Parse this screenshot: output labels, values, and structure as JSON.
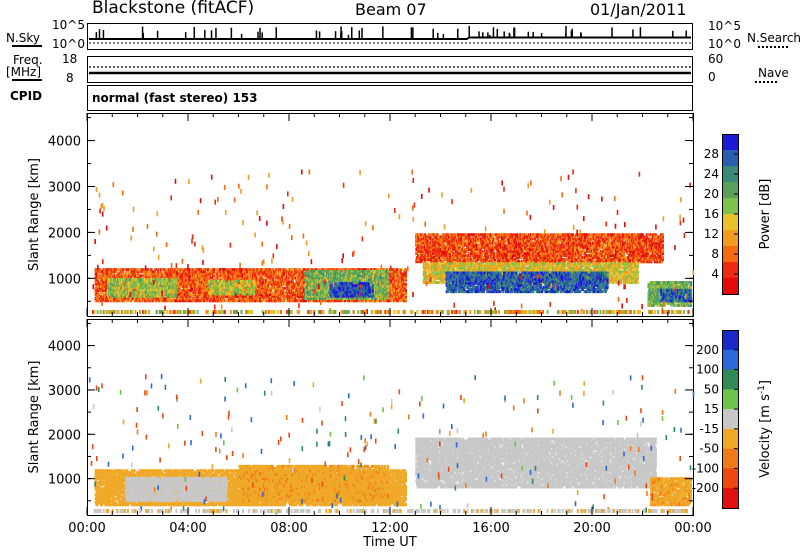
{
  "header": {
    "station": "Blackstone (fitACF)",
    "beam": "Beam 07",
    "date": "01/Jan/2011"
  },
  "top_panels": {
    "nsky_label": "N.Sky",
    "nsky_ticks": [
      "10^5",
      "10^0"
    ],
    "nsearch_label": "N.Search",
    "nsearch_ticks": [
      "10^5",
      "10^0"
    ],
    "freq_label_1": "Freq.",
    "freq_label_2": "[MHz]",
    "freq_ticks": [
      "18",
      "8"
    ],
    "nave_label": "Nave",
    "nave_ticks": [
      "60",
      "0"
    ],
    "cpid_label": "CPID",
    "cpid_value": "normal (fast stereo) 153"
  },
  "chart_data": [
    {
      "type": "heatmap",
      "name": "power",
      "ylabel": "Slant Range [km]",
      "ylim": [
        180,
        4600
      ],
      "yticks": [
        "1000",
        "2000",
        "3000",
        "4000"
      ],
      "xlim": [
        0,
        24
      ],
      "colorbar": {
        "label": "Power [dB]",
        "ticks": [
          "4",
          "8",
          "12",
          "16",
          "20",
          "24",
          "28"
        ],
        "colors": [
          "#1b1bd6",
          "#2a5fb0",
          "#3a8a7a",
          "#5aa05a",
          "#7cc24a",
          "#e8c22a",
          "#f39b1f",
          "#f46a10",
          "#ee2a10",
          "#e20a0a"
        ]
      },
      "regions": [
        {
          "t0": 0.3,
          "t1": 12.6,
          "r0": 500,
          "r1": 1200,
          "level": 0.22
        },
        {
          "t0": 0.8,
          "t1": 3.5,
          "r0": 600,
          "r1": 1000,
          "level": 0.55
        },
        {
          "t0": 4.8,
          "t1": 6.6,
          "r0": 650,
          "r1": 950,
          "level": 0.5
        },
        {
          "t0": 8.6,
          "t1": 11.9,
          "r0": 550,
          "r1": 1150,
          "level": 0.6
        },
        {
          "t0": 9.6,
          "t1": 11.3,
          "r0": 600,
          "r1": 900,
          "level": 0.9
        },
        {
          "t0": 13.0,
          "t1": 22.8,
          "r0": 1350,
          "r1": 1950,
          "level": 0.2
        },
        {
          "t0": 13.3,
          "t1": 21.8,
          "r0": 900,
          "r1": 1350,
          "level": 0.45
        },
        {
          "t0": 14.2,
          "t1": 20.6,
          "r0": 700,
          "r1": 1150,
          "level": 0.85
        },
        {
          "t0": 22.2,
          "t1": 23.9,
          "r0": 400,
          "r1": 900,
          "level": 0.6
        },
        {
          "t0": 22.7,
          "t1": 23.9,
          "r0": 500,
          "r1": 750,
          "level": 0.85
        }
      ]
    },
    {
      "type": "heatmap",
      "name": "velocity",
      "ylabel": "Slant Range [km]",
      "ylim": [
        180,
        4600
      ],
      "yticks": [
        "1000",
        "2000",
        "3000",
        "4000"
      ],
      "xlim": [
        0,
        24
      ],
      "xticks": [
        "00:00",
        "04:00",
        "08:00",
        "12:00",
        "16:00",
        "20:00",
        "00:00"
      ],
      "xlabel": "Time UT",
      "colorbar": {
        "label": "Velocity [m s^-1]",
        "label_main": "Velocity [m s",
        "label_sup": "-1",
        "label_end": "]",
        "ticks": [
          "200",
          "100",
          "50",
          "15",
          "-15",
          "-50",
          "-100",
          "-200"
        ],
        "colors": [
          "#1a28c8",
          "#2a6ad6",
          "#2f8a55",
          "#6cc44a",
          "#c8c8c8",
          "#f0a828",
          "#f07a18",
          "#ee4810",
          "#e21010"
        ]
      },
      "regions": [
        {
          "t0": 0.3,
          "t1": 12.6,
          "r0": 400,
          "r1": 1200,
          "value": -30
        },
        {
          "t0": 1.5,
          "t1": 5.5,
          "r0": 500,
          "r1": 1000,
          "value": 0
        },
        {
          "t0": 6.0,
          "t1": 11.9,
          "r0": 500,
          "r1": 1300,
          "value": -40
        },
        {
          "t0": 13.0,
          "t1": 22.5,
          "r0": 800,
          "r1": 1900,
          "value": 0
        },
        {
          "t0": 22.3,
          "t1": 23.9,
          "r0": 400,
          "r1": 1000,
          "value": -40
        }
      ]
    }
  ]
}
